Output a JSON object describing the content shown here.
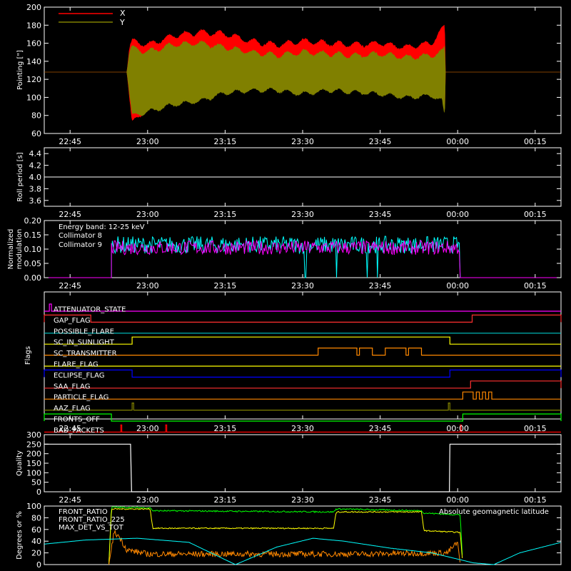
{
  "time_axis": {
    "ticks": [
      "22:45",
      "23:00",
      "23:15",
      "23:30",
      "23:45",
      "00:00",
      "00:15"
    ],
    "range_minutes_from_22_40": [
      0,
      100
    ],
    "tick_minutes_from_22_40": [
      5,
      20,
      35,
      50,
      65,
      80,
      95
    ]
  },
  "colors": {
    "x_series": "#ff0000",
    "y_series": "#808000",
    "collimator8": "#00ffff",
    "collimator9": "#ff00ff",
    "front_ratio": "#00ff00",
    "front_ratio_225": "#ffff00",
    "max_det": "#ff8800",
    "geomag": "#00ffff"
  },
  "chart_data": [
    {
      "type": "area",
      "ylabel": "Pointing [\"]",
      "ylim": [
        60,
        200
      ],
      "yticks": [
        "60",
        "80",
        "100",
        "120",
        "140",
        "160",
        "180",
        "200"
      ],
      "legend": [
        "X",
        "Y"
      ],
      "series": [
        {
          "name": "X",
          "t": [
            0,
            16,
            16.5,
            17,
            20,
            25,
            30,
            35,
            40,
            45,
            50,
            55,
            60,
            65,
            70,
            75,
            77,
            77.5,
            77.6,
            100
          ],
          "upper": [
            128,
            128,
            155,
            162,
            158,
            168,
            172,
            170,
            162,
            158,
            162,
            160,
            158,
            160,
            155,
            160,
            175,
            180,
            128,
            128
          ],
          "lower": [
            128,
            128,
            100,
            72,
            88,
            95,
            100,
            108,
            112,
            110,
            108,
            112,
            110,
            108,
            106,
            112,
            108,
            82,
            128,
            128
          ]
        },
        {
          "name": "Y",
          "t": [
            0,
            16,
            16.5,
            17,
            20,
            25,
            30,
            35,
            40,
            45,
            50,
            55,
            60,
            65,
            70,
            75,
            77,
            77.5,
            77.6,
            100
          ],
          "upper": [
            128,
            128,
            150,
            155,
            150,
            158,
            160,
            155,
            150,
            146,
            150,
            148,
            146,
            148,
            144,
            146,
            150,
            155,
            128,
            128
          ],
          "lower": [
            128,
            128,
            104,
            80,
            84,
            92,
            96,
            105,
            108,
            108,
            104,
            108,
            106,
            104,
            100,
            102,
            96,
            78,
            128,
            128
          ]
        }
      ]
    },
    {
      "type": "line",
      "ylabel": "Roll period [s]",
      "ylim": [
        3.5,
        4.5
      ],
      "yticks": [
        "3.6",
        "3.8",
        "4.0",
        "4.2",
        "4.4"
      ],
      "series": [
        {
          "name": "",
          "t": [
            0,
            100
          ],
          "values": [
            4.0,
            4.0
          ]
        }
      ]
    },
    {
      "type": "line",
      "ylabel": "Normalized modulation",
      "ylim": [
        0,
        0.2
      ],
      "yticks": [
        "0.00",
        "0.05",
        "0.10",
        "0.15",
        "0.20"
      ],
      "annotation": "Energy band: 12-25 keV",
      "legend": [
        "Collimator 8",
        "Collimator 9"
      ],
      "series": [
        {
          "name": "Collimator 8",
          "start": 13,
          "end": 80.5,
          "level": 0.115,
          "amp": 0.06,
          "dropouts": [
            50.5,
            56.5,
            62.5,
            64.5
          ]
        },
        {
          "name": "Collimator 9",
          "start": 13,
          "end": 80.5,
          "level": 0.105,
          "amp": 0.05,
          "dropouts": []
        }
      ]
    },
    {
      "type": "line",
      "ylabel": "Flags",
      "flags": [
        {
          "name": "ATTENUATOR_STATE",
          "color": "#ff00ff",
          "high": [
            [
              1,
              1.4
            ]
          ]
        },
        {
          "name": "GAP_FLAG",
          "color": "#ff3030",
          "high": [
            [
              0,
              9
            ],
            [
              82.8,
              100
            ]
          ]
        },
        {
          "name": "POSSIBLE_FLARE",
          "color": "#00c8c8",
          "high": []
        },
        {
          "name": "SC_IN_SUNLIGHT",
          "color": "#ffff00",
          "high": [
            [
              17,
              78.5
            ]
          ]
        },
        {
          "name": "SC_TRANSMITTER",
          "color": "#ff8800",
          "high": [
            [
              53,
              60.5
            ],
            [
              61,
              63.5
            ],
            [
              66,
              70
            ],
            [
              70.5,
              73
            ]
          ]
        },
        {
          "name": "FLARE_FLAG",
          "color": "#ffff00",
          "high": []
        },
        {
          "name": "ECLIPSE_FLAG",
          "color": "#0000ff",
          "high": [
            [
              0,
              17
            ],
            [
              78.5,
              100
            ]
          ]
        },
        {
          "name": "SAA_FLAG",
          "color": "#ff3030",
          "high": [
            [
              82.5,
              100
            ]
          ]
        },
        {
          "name": "PARTICLE_FLAG",
          "color": "#ff8800",
          "high": [
            [
              81,
              83
            ],
            [
              83.6,
              84.2
            ],
            [
              84.8,
              85.4
            ],
            [
              86,
              86.6
            ]
          ]
        },
        {
          "name": "AAZ_FLAG",
          "color": "#808000",
          "high": [
            [
              17,
              17.3
            ],
            [
              78.2,
              78.5
            ]
          ]
        },
        {
          "name": "FRONTS_OFF",
          "color": "#00ff00",
          "high": [
            [
              0,
              13
            ],
            [
              81,
              100
            ]
          ]
        },
        {
          "name": "BAD_PACKETS",
          "color": "#ff0000",
          "high": [
            [
              14.8,
              15
            ],
            [
              23.5,
              23.7
            ],
            [
              80.5,
              80.7
            ]
          ]
        }
      ]
    },
    {
      "type": "line",
      "ylabel": "Quality",
      "ylim": [
        0,
        300
      ],
      "yticks": [
        "0",
        "50",
        "100",
        "150",
        "200",
        "250",
        "300"
      ],
      "series": [
        {
          "name": "",
          "t": [
            0,
            16.7,
            16.9,
            17.7,
            18.2,
            77.8,
            78.4,
            78.5,
            100
          ],
          "values": [
            250,
            250,
            0,
            0,
            0,
            0,
            0,
            250,
            250
          ]
        }
      ]
    },
    {
      "type": "line",
      "ylabel": "Degrees or %",
      "ylim": [
        0,
        100
      ],
      "yticks": [
        "0",
        "20",
        "40",
        "60",
        "80",
        "100"
      ],
      "annotation": "Absolute geomagnetic latitude",
      "legend": [
        "FRONT_RATIO",
        "FRONT_RATIO_225",
        "MAX_DET_VS_TOT"
      ],
      "series": [
        {
          "name": "FRONT_RATIO",
          "t": [
            12.5,
            13,
            20.5,
            21,
            56,
            56.5,
            73,
            73.5,
            80.5,
            81
          ],
          "values": [
            0,
            98,
            97,
            92,
            90,
            95,
            92,
            88,
            85,
            0
          ]
        },
        {
          "name": "FRONT_RATIO_225",
          "t": [
            12.5,
            13,
            20.5,
            21,
            56,
            56.5,
            73,
            73.5,
            80.5,
            81
          ],
          "values": [
            0,
            95,
            95,
            62,
            62,
            90,
            90,
            58,
            55,
            0
          ]
        },
        {
          "name": "MAX_DET_VS_TOT",
          "t": [
            12.5,
            13.5,
            14.5,
            16,
            20,
            40,
            60,
            78,
            80,
            80.5
          ],
          "values": [
            0,
            55,
            48,
            25,
            18,
            18,
            18,
            20,
            38,
            0
          ]
        },
        {
          "name": "Absolute geomagnetic latitude",
          "t": [
            0,
            8,
            18,
            28,
            37,
            45,
            52,
            58,
            67,
            75,
            83,
            87,
            92,
            100
          ],
          "values": [
            35,
            42,
            45,
            38,
            0,
            30,
            45,
            40,
            28,
            20,
            3,
            0,
            20,
            38
          ]
        }
      ]
    }
  ]
}
